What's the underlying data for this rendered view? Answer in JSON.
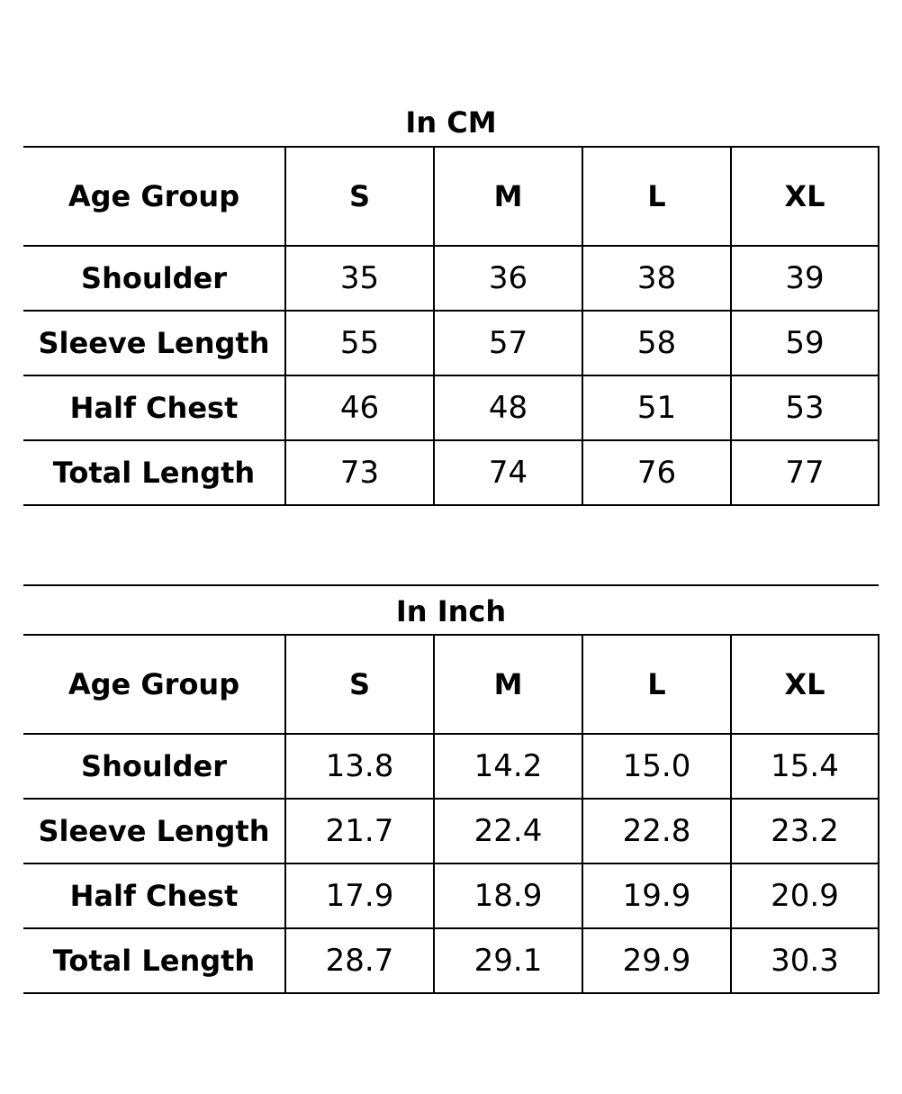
{
  "tables": [
    {
      "title": "In CM",
      "header": [
        "Age Group",
        "S",
        "M",
        "L",
        "XL"
      ],
      "rows": [
        {
          "label": "Shoulder",
          "values": [
            "35",
            "36",
            "38",
            "39"
          ]
        },
        {
          "label": "Sleeve Length",
          "values": [
            "55",
            "57",
            "58",
            "59"
          ]
        },
        {
          "label": "Half Chest",
          "values": [
            "46",
            "48",
            "51",
            "53"
          ]
        },
        {
          "label": "Total Length",
          "values": [
            "73",
            "74",
            "76",
            "77"
          ]
        }
      ]
    },
    {
      "title": "In Inch",
      "header": [
        "Age Group",
        "S",
        "M",
        "L",
        "XL"
      ],
      "rows": [
        {
          "label": "Shoulder",
          "values": [
            "13.8",
            "14.2",
            "15.0",
            "15.4"
          ]
        },
        {
          "label": "Sleeve Length",
          "values": [
            "21.7",
            "22.4",
            "22.8",
            "23.2"
          ]
        },
        {
          "label": "Half Chest",
          "values": [
            "17.9",
            "18.9",
            "19.9",
            "20.9"
          ]
        },
        {
          "label": "Total Length",
          "values": [
            "28.7",
            "29.1",
            "29.9",
            "30.3"
          ]
        }
      ]
    }
  ]
}
